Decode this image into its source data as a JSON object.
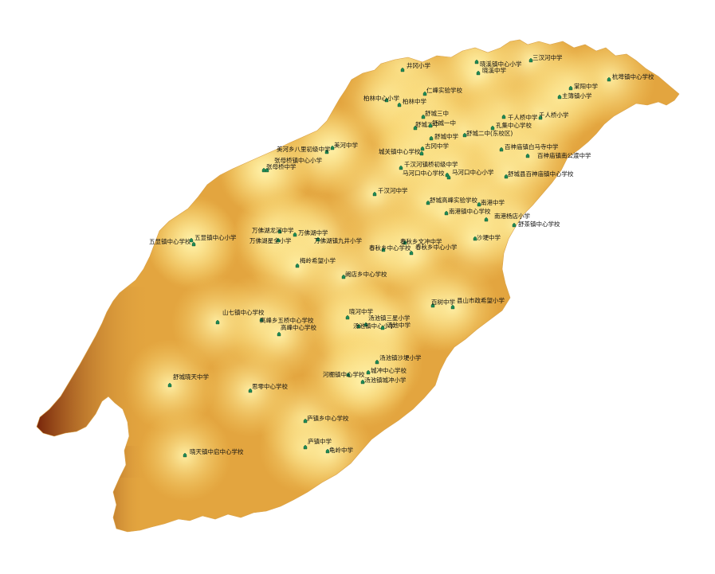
{
  "colors": {
    "fill_light": "#fff1a8",
    "fill_mid": "#f6cf66",
    "fill_dark": "#e3a53f",
    "edge_dark": "#6e1a06",
    "marker": "#1f8a55",
    "background": "#ffffff"
  },
  "marker_icon": "school-icon",
  "schools": [
    {
      "name": "井冈小学"
    },
    {
      "name": "晓溪镇中心小学"
    },
    {
      "name": "晓溪中学"
    },
    {
      "name": "三汉河中学"
    },
    {
      "name": "杭埠镇中心学校"
    },
    {
      "name": "仁峰实验学校"
    },
    {
      "name": "柏林中心小学"
    },
    {
      "name": "柏林中学"
    },
    {
      "name": "棠阳中学"
    },
    {
      "name": "主簿镇小学"
    },
    {
      "name": "舒城三中"
    },
    {
      "name": "舒城二中"
    },
    {
      "name": "舒城一中"
    },
    {
      "name": "千人桥中学"
    },
    {
      "name": "千人桥小学"
    },
    {
      "name": "孔集中心学校"
    },
    {
      "name": "舒城中学"
    },
    {
      "name": "舒城二中(东校区)"
    },
    {
      "name": "古冈中学"
    },
    {
      "name": "百神庙镇白马寺中学"
    },
    {
      "name": "美河乡八里初级中学"
    },
    {
      "name": "美河中学"
    },
    {
      "name": "城关镇中心学校"
    },
    {
      "name": "百神庙镇南公渡中学"
    },
    {
      "name": "张母桥镇中心小学"
    },
    {
      "name": "张母桥中学"
    },
    {
      "name": "千汉河镇桥初级中学"
    },
    {
      "name": "马河口中心学校"
    },
    {
      "name": "马河口中心小学"
    },
    {
      "name": "舒城县百神庙镇中心学校"
    },
    {
      "name": "千汉河中学"
    },
    {
      "name": "舒城高峰实验学校"
    },
    {
      "name": "南港中学"
    },
    {
      "name": "南港镇中心学校"
    },
    {
      "name": "南港杨店小学"
    },
    {
      "name": "舒茶镇中心学校"
    },
    {
      "name": "万佛湖龙河中学"
    },
    {
      "name": "万佛湖中学"
    },
    {
      "name": "五显镇中心学校"
    },
    {
      "name": "五显镇中心小学"
    },
    {
      "name": "万佛湖星全小学"
    },
    {
      "name": "万佛湖镇九井小学"
    },
    {
      "name": "春秋乡文冲中学"
    },
    {
      "name": "沙埂中学"
    },
    {
      "name": "春秋乡中心学校"
    },
    {
      "name": "春秋乡中心小学"
    },
    {
      "name": "梅岭希望小学"
    },
    {
      "name": "阙店乡中心学校"
    },
    {
      "name": "山七镇中心学校"
    },
    {
      "name": "高峰乡五桥中心学校"
    },
    {
      "name": "晓河中学"
    },
    {
      "name": "汤池镇三星小学"
    },
    {
      "name": "百树中学"
    },
    {
      "name": "县山市政希望小学"
    },
    {
      "name": "高峰中心学校"
    },
    {
      "name": "汤池镇中心小学"
    },
    {
      "name": "汤池中学"
    },
    {
      "name": "汤池镇沙埂小学"
    },
    {
      "name": "舒城晓天中学"
    },
    {
      "name": "河棚镇中心学校"
    },
    {
      "name": "城冲中心学校"
    },
    {
      "name": "汤池镇城冲小学"
    },
    {
      "name": "思零中心学校"
    },
    {
      "name": "庐镇乡中心学校"
    },
    {
      "name": "庐镇中学"
    },
    {
      "name": "晓天镇中启中心学校"
    },
    {
      "name": "龟岭中学"
    }
  ]
}
